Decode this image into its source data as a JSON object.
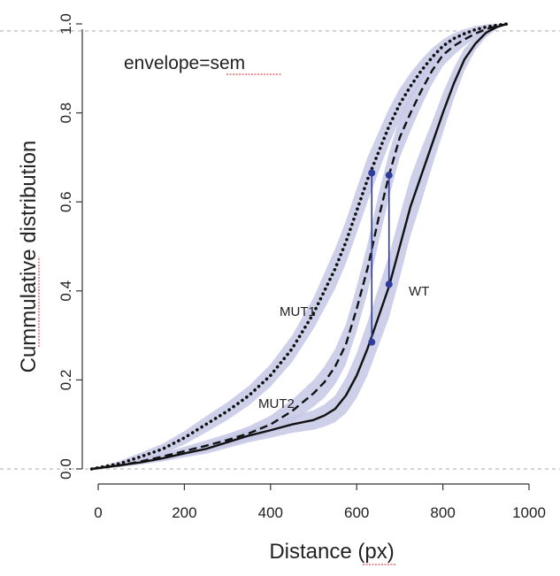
{
  "chart_data": {
    "type": "line",
    "title": "",
    "xlabel": "Distance (px)",
    "ylabel": "Cummulative distribution",
    "xlim": [
      -15,
      1000
    ],
    "ylim": [
      0,
      1
    ],
    "x_ticks": [
      "0",
      "200",
      "400",
      "600",
      "800",
      "1000"
    ],
    "y_ticks": [
      "0.0",
      "0.2",
      "0.4",
      "0.6",
      "0.8",
      "1.0"
    ],
    "annotation": "envelope=sem",
    "envelope_color": "#c5c8e6",
    "marker_color": "#2f3d99",
    "reference_lines": [
      0,
      1
    ],
    "series": [
      {
        "name": "WT",
        "style": "solid",
        "x": [
          -15,
          50,
          100,
          150,
          200,
          250,
          300,
          350,
          400,
          450,
          500,
          525,
          550,
          575,
          600,
          625,
          650,
          675,
          700,
          725,
          750,
          775,
          800,
          825,
          850,
          875,
          900,
          925,
          950
        ],
        "y": [
          0.0,
          0.008,
          0.015,
          0.024,
          0.035,
          0.045,
          0.06,
          0.075,
          0.087,
          0.1,
          0.11,
          0.12,
          0.135,
          0.165,
          0.21,
          0.27,
          0.34,
          0.41,
          0.5,
          0.59,
          0.66,
          0.73,
          0.8,
          0.865,
          0.92,
          0.955,
          0.98,
          0.993,
          1.0
        ],
        "sem": [
          0,
          0.003,
          0.005,
          0.007,
          0.009,
          0.011,
          0.013,
          0.015,
          0.017,
          0.019,
          0.022,
          0.025,
          0.03,
          0.04,
          0.05,
          0.06,
          0.065,
          0.07,
          0.07,
          0.065,
          0.06,
          0.05,
          0.045,
          0.035,
          0.025,
          0.015,
          0.01,
          0.005,
          0
        ]
      },
      {
        "name": "MUT2",
        "style": "dashed",
        "x": [
          -15,
          50,
          100,
          150,
          200,
          250,
          300,
          350,
          400,
          450,
          500,
          525,
          550,
          575,
          600,
          625,
          650,
          675,
          700,
          725,
          750,
          775,
          800,
          825,
          850,
          875,
          900,
          925,
          950
        ],
        "y": [
          0.0,
          0.008,
          0.017,
          0.028,
          0.04,
          0.052,
          0.065,
          0.08,
          0.1,
          0.13,
          0.17,
          0.195,
          0.23,
          0.28,
          0.36,
          0.45,
          0.56,
          0.66,
          0.745,
          0.8,
          0.85,
          0.895,
          0.93,
          0.95,
          0.965,
          0.978,
          0.988,
          0.995,
          1.0
        ],
        "sem": [
          0,
          0.004,
          0.006,
          0.008,
          0.01,
          0.012,
          0.014,
          0.016,
          0.02,
          0.025,
          0.03,
          0.035,
          0.04,
          0.045,
          0.05,
          0.055,
          0.055,
          0.05,
          0.045,
          0.04,
          0.035,
          0.03,
          0.025,
          0.02,
          0.015,
          0.01,
          0.007,
          0.004,
          0
        ]
      },
      {
        "name": "MUT1",
        "style": "dotted",
        "x": [
          -15,
          50,
          100,
          150,
          200,
          250,
          300,
          350,
          400,
          450,
          500,
          525,
          550,
          575,
          600,
          625,
          650,
          675,
          700,
          725,
          750,
          775,
          800,
          825,
          850,
          875,
          900,
          925,
          950
        ],
        "y": [
          0.0,
          0.012,
          0.028,
          0.045,
          0.07,
          0.1,
          0.13,
          0.165,
          0.21,
          0.27,
          0.35,
          0.4,
          0.45,
          0.51,
          0.58,
          0.65,
          0.71,
          0.77,
          0.82,
          0.86,
          0.895,
          0.925,
          0.95,
          0.967,
          0.978,
          0.987,
          0.993,
          0.997,
          1.0
        ],
        "sem": [
          0,
          0.006,
          0.009,
          0.012,
          0.015,
          0.018,
          0.02,
          0.022,
          0.025,
          0.03,
          0.035,
          0.04,
          0.045,
          0.048,
          0.05,
          0.05,
          0.045,
          0.04,
          0.035,
          0.03,
          0.025,
          0.02,
          0.015,
          0.012,
          0.01,
          0.008,
          0.006,
          0.004,
          0
        ]
      }
    ],
    "markers": [
      {
        "x": 635,
        "y1": 0.285,
        "y2": 0.665
      },
      {
        "x": 675,
        "y1": 0.415,
        "y2": 0.66
      }
    ],
    "series_labels": [
      "MUT1",
      "MUT2",
      "WT"
    ]
  }
}
